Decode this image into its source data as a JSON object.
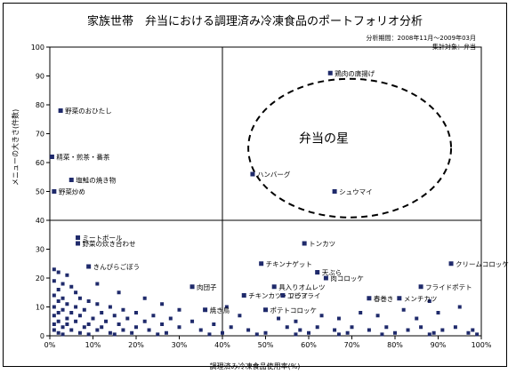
{
  "title": "家族世帯　弁当における調理済み冷凍食品のポートフォリオ分析",
  "meta": {
    "period": "分析期間：2008年11月～2009年03月",
    "target": "集計対象：弁当"
  },
  "chart_data": {
    "type": "scatter",
    "title": "家族世帯　弁当における調理済み冷凍食品のポートフォリオ分析",
    "xlabel": "調理済み冷凍食品使用率(%)",
    "ylabel": "メニューの大きさ(件数)",
    "xlim": [
      0,
      100
    ],
    "ylim": [
      0,
      100
    ],
    "x_ticks": [
      "0%",
      "10%",
      "20%",
      "30%",
      "40%",
      "50%",
      "60%",
      "70%",
      "80%",
      "90%",
      "100%"
    ],
    "y_ticks": [
      "0",
      "10",
      "20",
      "30",
      "40",
      "50",
      "60",
      "70",
      "80",
      "90",
      "100"
    ],
    "divider_x": 40,
    "divider_y": 40,
    "highlight_label": "弁当の星",
    "colors": {
      "points": "#1f2a6b",
      "frame": "#000000",
      "ellipse": "#000000"
    },
    "labeled_points": [
      {
        "x": 65,
        "y": 91,
        "label": "鶏肉の唐揚げ"
      },
      {
        "x": 2.5,
        "y": 78,
        "label": "野菜のおひたし"
      },
      {
        "x": 0.5,
        "y": 62,
        "label": "精菜・煎茶・番茶"
      },
      {
        "x": 5,
        "y": 54,
        "label": "塩鮭の焼き物"
      },
      {
        "x": 1,
        "y": 50,
        "label": "野菜炒め"
      },
      {
        "x": 47,
        "y": 56,
        "label": "ハンバーグ"
      },
      {
        "x": 66,
        "y": 50,
        "label": "シュウマイ"
      },
      {
        "x": 6.5,
        "y": 34,
        "label": "ミートボール"
      },
      {
        "x": 6.5,
        "y": 32,
        "label": "野菜の炊き合わせ"
      },
      {
        "x": 59,
        "y": 32,
        "label": "トンカツ"
      },
      {
        "x": 49,
        "y": 25,
        "label": "チキンナゲット"
      },
      {
        "x": 62,
        "y": 22,
        "label": "天ぷら"
      },
      {
        "x": 64,
        "y": 20,
        "label": "肉コロッケ"
      },
      {
        "x": 93,
        "y": 25,
        "label": "クリームコロッケ"
      },
      {
        "x": 86,
        "y": 17,
        "label": "フライドポテト"
      },
      {
        "x": 52,
        "y": 17,
        "label": "具入りオムレツ"
      },
      {
        "x": 45,
        "y": 14,
        "label": "チキンカツ・フライ"
      },
      {
        "x": 54,
        "y": 14,
        "label": "エビフライ"
      },
      {
        "x": 74,
        "y": 13,
        "label": "春巻き"
      },
      {
        "x": 81,
        "y": 13,
        "label": "メンチカツ"
      },
      {
        "x": 50,
        "y": 9,
        "label": "ポテトコロッケ"
      },
      {
        "x": 33,
        "y": 17,
        "label": "肉団子"
      },
      {
        "x": 36,
        "y": 9,
        "label": "焼き鳥"
      },
      {
        "x": 9,
        "y": 24,
        "label": "きんぴらごぼう"
      }
    ],
    "cluster_points": [
      [
        1,
        23
      ],
      [
        2,
        22
      ],
      [
        4,
        21
      ],
      [
        1,
        19
      ],
      [
        3,
        18
      ],
      [
        5,
        17
      ],
      [
        2,
        16
      ],
      [
        6,
        15
      ],
      [
        1,
        14
      ],
      [
        3,
        13
      ],
      [
        7,
        13
      ],
      [
        2,
        12
      ],
      [
        9,
        12
      ],
      [
        4,
        11
      ],
      [
        11,
        11
      ],
      [
        1,
        10
      ],
      [
        6,
        10
      ],
      [
        14,
        10
      ],
      [
        3,
        9
      ],
      [
        8,
        9
      ],
      [
        17,
        9
      ],
      [
        2,
        8
      ],
      [
        5,
        8
      ],
      [
        12,
        8
      ],
      [
        20,
        8
      ],
      [
        1,
        7
      ],
      [
        7,
        7
      ],
      [
        15,
        7
      ],
      [
        24,
        7
      ],
      [
        4,
        6
      ],
      [
        10,
        6
      ],
      [
        18,
        6
      ],
      [
        28,
        6
      ],
      [
        2,
        5
      ],
      [
        6,
        5
      ],
      [
        13,
        5
      ],
      [
        22,
        5
      ],
      [
        33,
        5
      ],
      [
        1,
        4
      ],
      [
        4,
        4
      ],
      [
        9,
        4
      ],
      [
        16,
        4
      ],
      [
        26,
        4
      ],
      [
        38,
        4
      ],
      [
        3,
        3
      ],
      [
        8,
        3
      ],
      [
        12,
        3
      ],
      [
        20,
        3
      ],
      [
        30,
        3
      ],
      [
        42,
        3
      ],
      [
        55,
        3
      ],
      [
        62,
        3
      ],
      [
        70,
        3
      ],
      [
        78,
        3
      ],
      [
        86,
        3
      ],
      [
        94,
        3
      ],
      [
        1,
        2
      ],
      [
        5,
        2
      ],
      [
        11,
        2
      ],
      [
        17,
        2
      ],
      [
        23,
        2
      ],
      [
        35,
        2
      ],
      [
        46,
        2
      ],
      [
        58,
        2
      ],
      [
        66,
        2
      ],
      [
        74,
        2
      ],
      [
        83,
        2
      ],
      [
        91,
        2
      ],
      [
        98,
        2
      ],
      [
        2,
        1
      ],
      [
        7,
        1
      ],
      [
        14,
        1
      ],
      [
        19,
        1
      ],
      [
        27,
        1
      ],
      [
        40,
        1
      ],
      [
        50,
        1
      ],
      [
        60,
        1
      ],
      [
        69,
        1
      ],
      [
        80,
        1
      ],
      [
        89,
        1
      ],
      [
        97,
        1
      ],
      [
        3,
        0.5
      ],
      [
        9,
        0.5
      ],
      [
        15,
        0.5
      ],
      [
        25,
        0.5
      ],
      [
        37,
        0.5
      ],
      [
        48,
        0.5
      ],
      [
        57,
        0.5
      ],
      [
        67,
        0.5
      ],
      [
        77,
        0.5
      ],
      [
        88,
        0.5
      ],
      [
        99,
        0.5
      ],
      [
        11,
        18
      ],
      [
        16,
        15
      ],
      [
        22,
        13
      ],
      [
        26,
        11
      ],
      [
        30,
        9
      ],
      [
        72,
        8
      ],
      [
        76,
        7
      ],
      [
        82,
        9
      ],
      [
        85,
        6
      ],
      [
        90,
        8
      ],
      [
        95,
        10
      ],
      [
        88,
        12
      ],
      [
        67,
        6
      ],
      [
        63,
        7
      ],
      [
        57,
        5
      ],
      [
        53,
        6
      ],
      [
        44,
        7
      ],
      [
        41,
        10
      ]
    ]
  }
}
